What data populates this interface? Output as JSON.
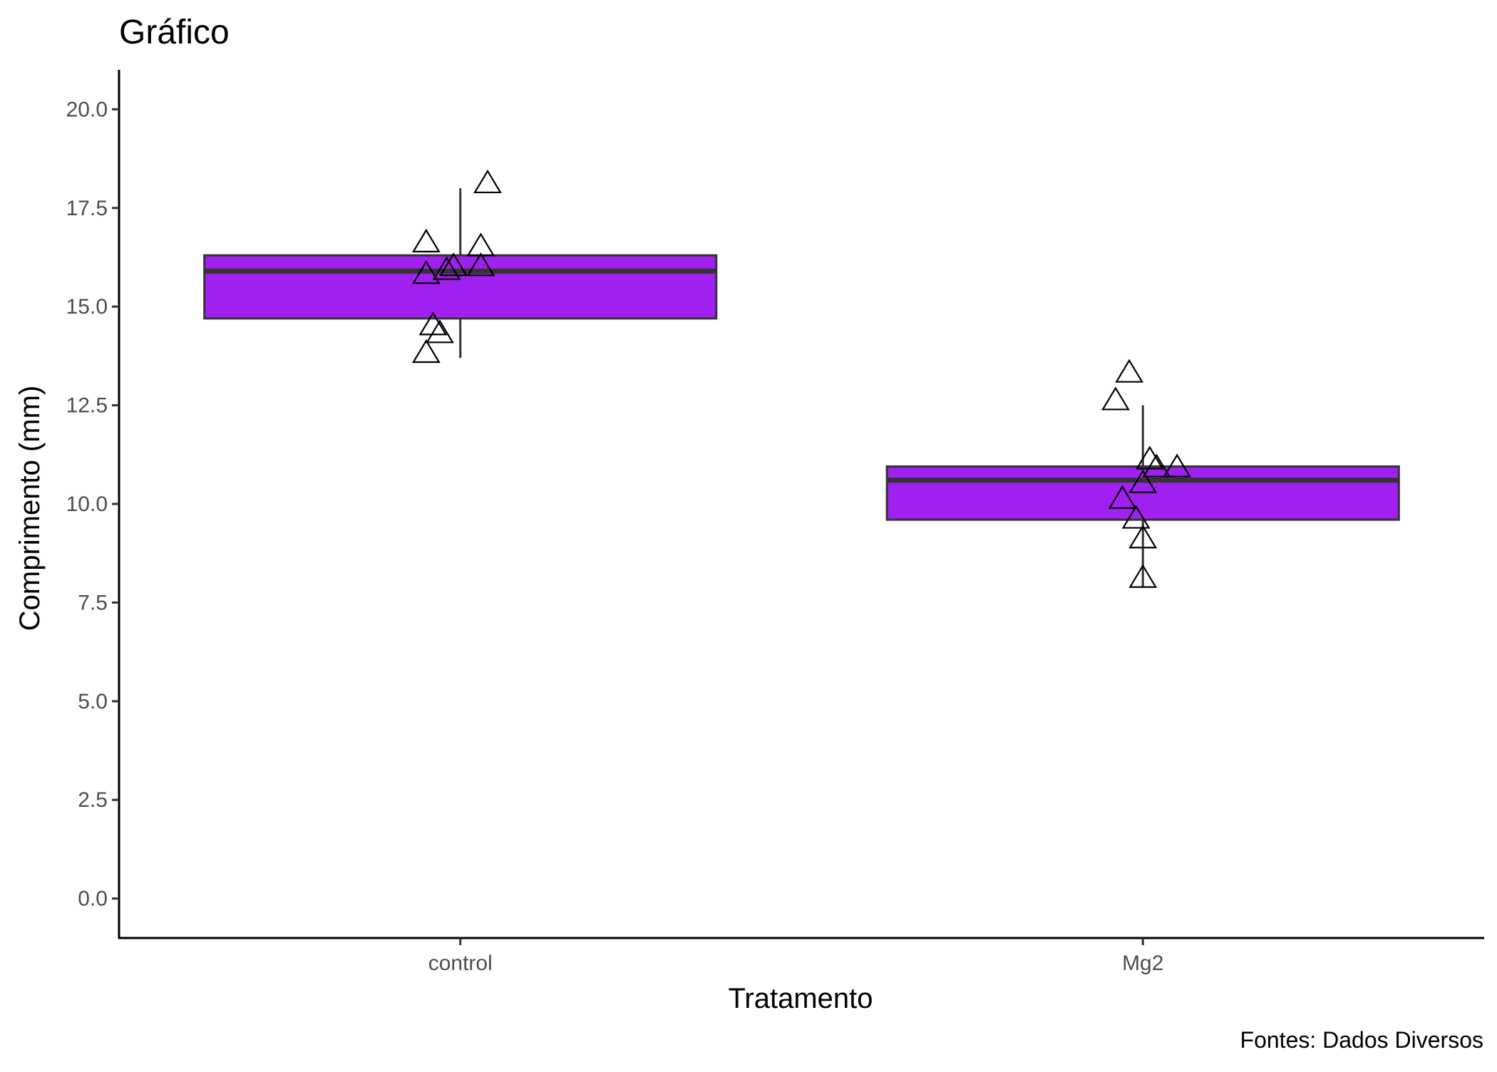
{
  "chart_data": {
    "type": "box",
    "title": "Gráfico",
    "xlabel": "Tratamento",
    "ylabel": "Comprimento (mm)",
    "caption": "Fontes: Dados Diversos",
    "ylim": [
      -1,
      21
    ],
    "yticks": [
      "0.0",
      "2.5",
      "5.0",
      "7.5",
      "10.0",
      "12.5",
      "15.0",
      "17.5",
      "20.0"
    ],
    "ytick_values": [
      0,
      2.5,
      5,
      7.5,
      10,
      12.5,
      15,
      17.5,
      20
    ],
    "categories": [
      "control",
      "Mg2"
    ],
    "boxes": [
      {
        "category": "control",
        "whisker_low": 13.7,
        "q1": 14.7,
        "median": 15.9,
        "q3": 16.3,
        "whisker_high": 18.0,
        "points": [
          {
            "jitter": -0.05,
            "y": 16.6
          },
          {
            "jitter": -0.05,
            "y": 15.8
          },
          {
            "jitter": -0.04,
            "y": 14.5
          },
          {
            "jitter": -0.03,
            "y": 14.3
          },
          {
            "jitter": -0.05,
            "y": 13.8
          },
          {
            "jitter": -0.02,
            "y": 15.9
          },
          {
            "jitter": -0.01,
            "y": 16.0
          },
          {
            "jitter": 0.03,
            "y": 16.5
          },
          {
            "jitter": 0.03,
            "y": 16.0
          },
          {
            "jitter": 0.04,
            "y": 18.1
          }
        ]
      },
      {
        "category": "Mg2",
        "whisker_low": 7.9,
        "q1": 9.6,
        "median": 10.6,
        "q3": 10.95,
        "whisker_high": 12.5,
        "points": [
          {
            "jitter": -0.02,
            "y": 13.3
          },
          {
            "jitter": -0.04,
            "y": 12.6
          },
          {
            "jitter": 0.01,
            "y": 11.1
          },
          {
            "jitter": 0.02,
            "y": 10.9
          },
          {
            "jitter": 0.05,
            "y": 10.9
          },
          {
            "jitter": 0.0,
            "y": 10.5
          },
          {
            "jitter": -0.03,
            "y": 10.1
          },
          {
            "jitter": -0.01,
            "y": 9.6
          },
          {
            "jitter": 0.0,
            "y": 9.1
          },
          {
            "jitter": 0.0,
            "y": 8.1
          }
        ]
      }
    ],
    "colors": {
      "box_fill": "#a020f0",
      "box_stroke": "#333333",
      "point_stroke": "#000000",
      "axis": "#000000"
    },
    "grid": false,
    "point_shape": "open-triangle"
  }
}
